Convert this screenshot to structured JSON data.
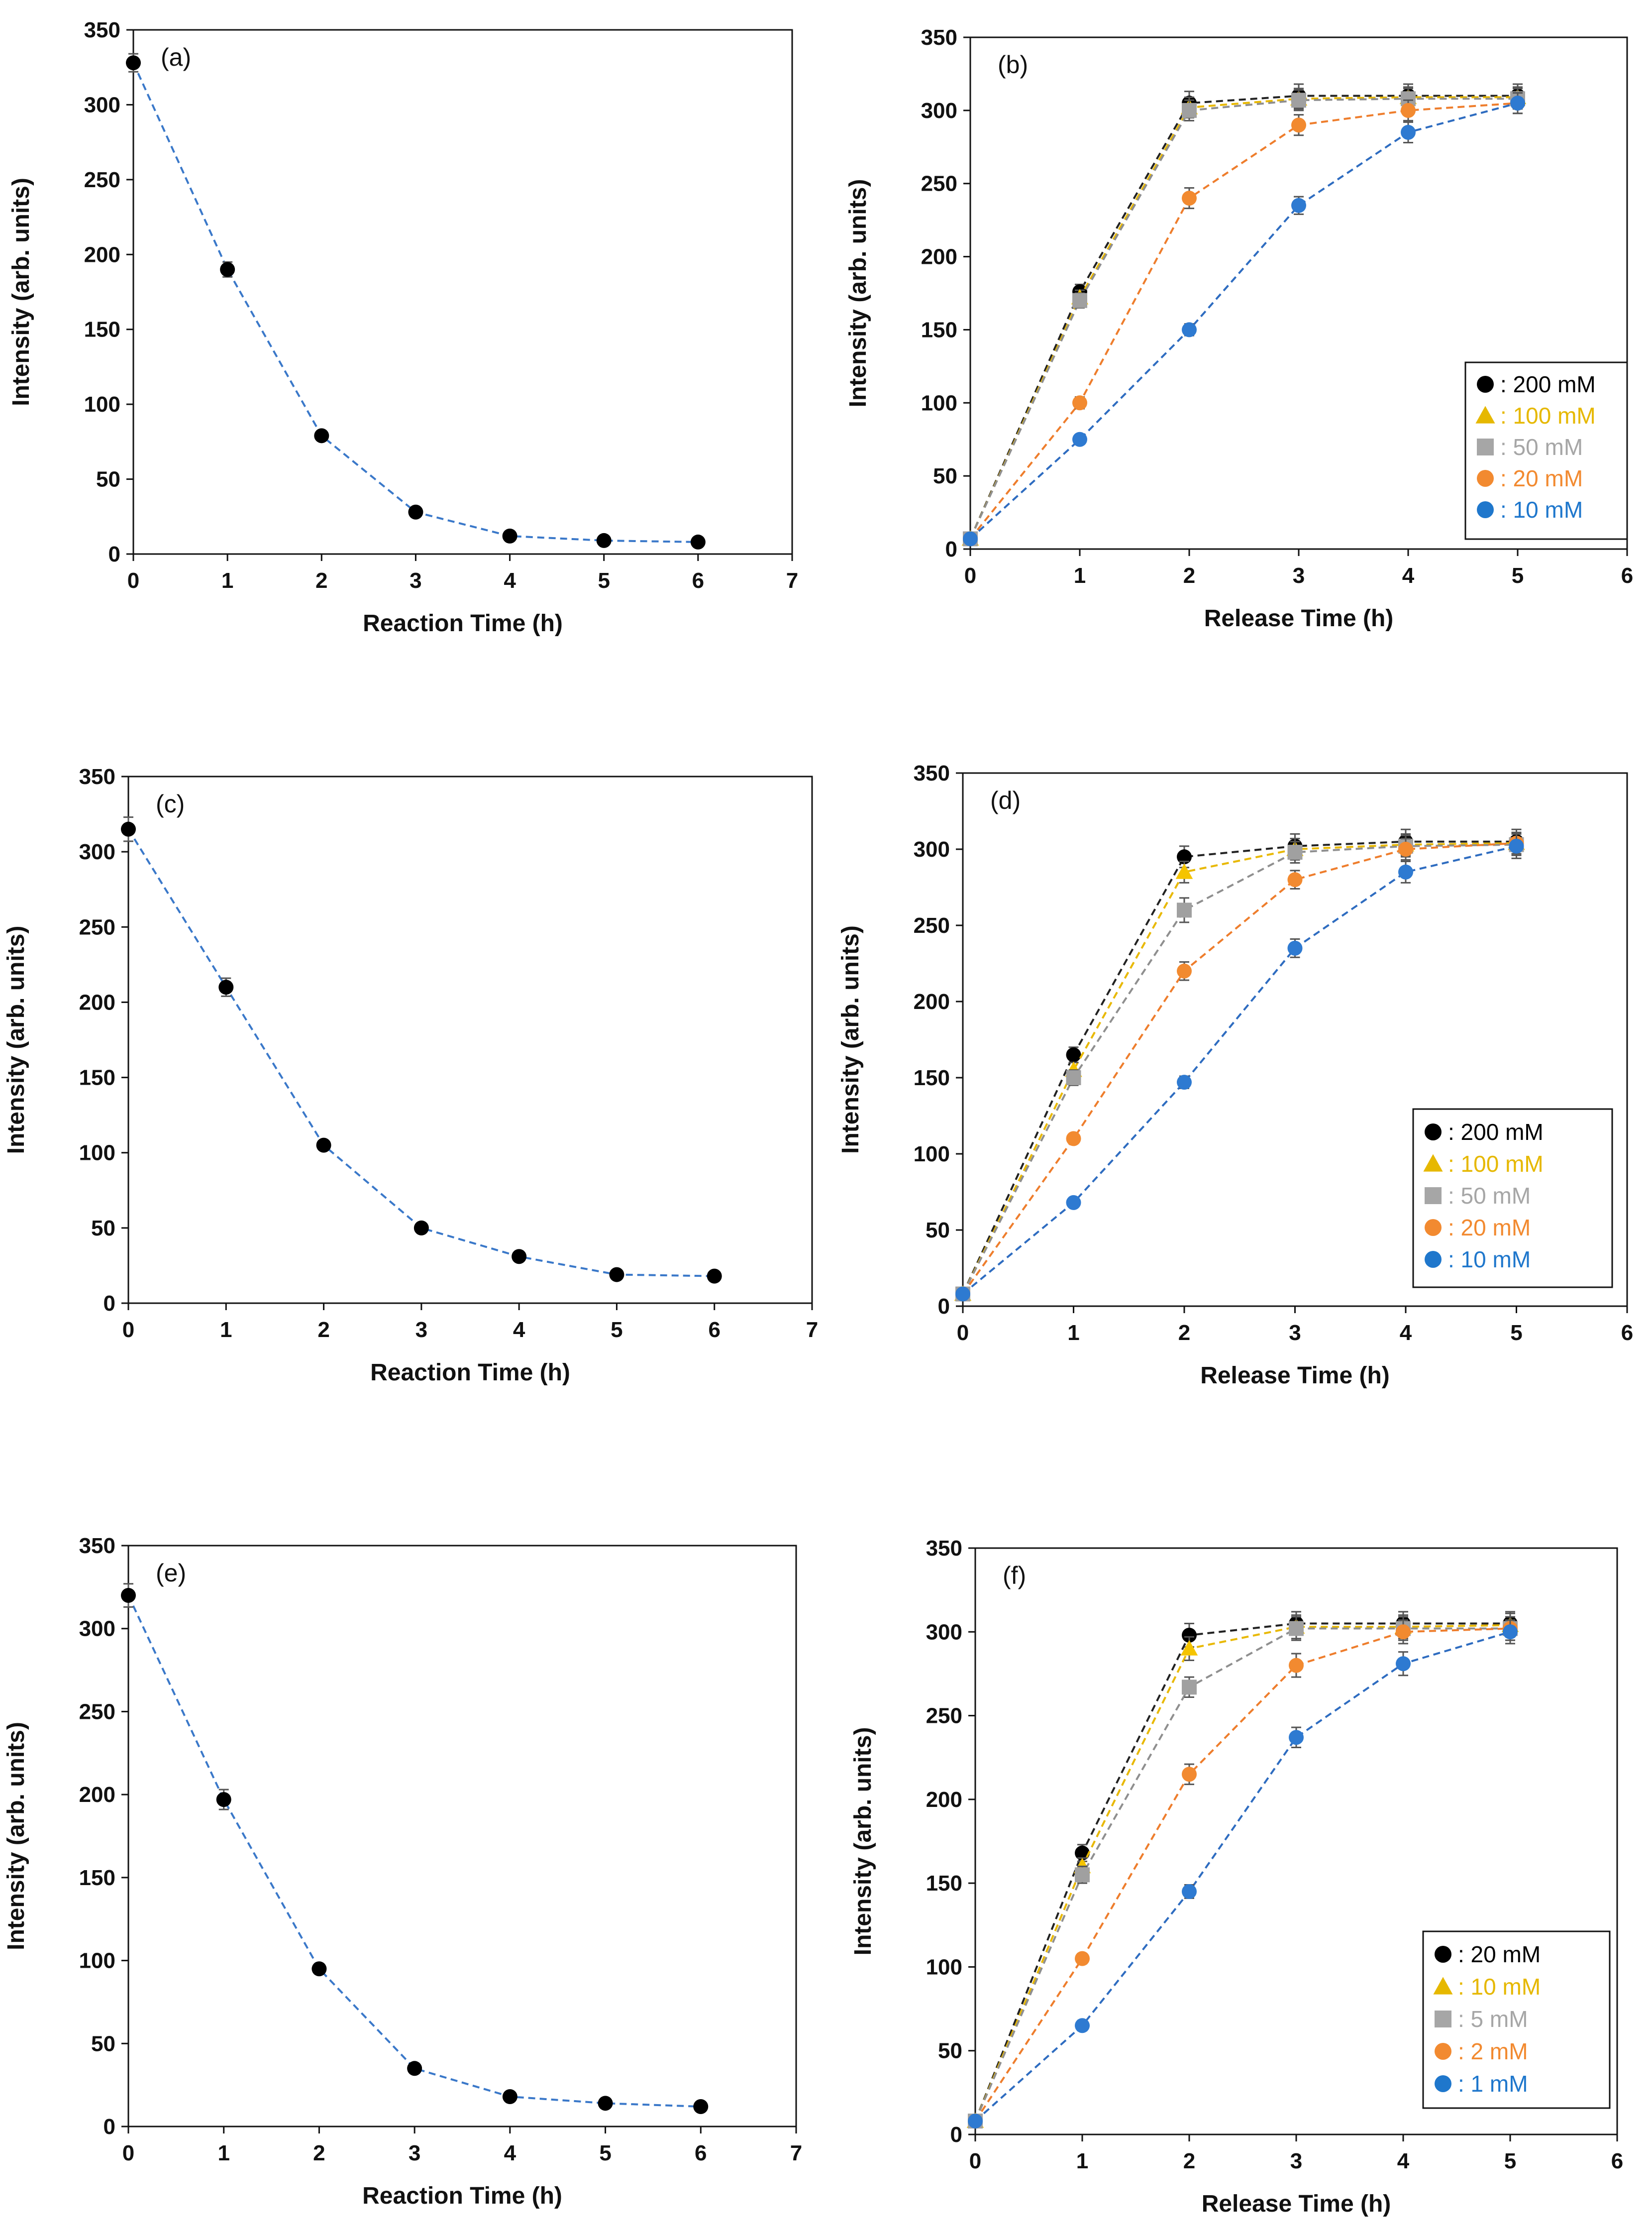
{
  "figure": {
    "colors": {
      "axis": "#111111",
      "decay_line": "#3a78c9",
      "marker_default": "#000000"
    },
    "series_styles": {
      "black": {
        "marker": "circle",
        "marker_color": "#000000",
        "line_color": "#222222",
        "legend_color": "#000000"
      },
      "yellow": {
        "marker": "triangle",
        "marker_color": "#f5c400",
        "line_color": "#e8b800",
        "legend_color": "#e6b800"
      },
      "gray": {
        "marker": "square",
        "marker_color": "#a0a0a0",
        "line_color": "#8f8f8f",
        "legend_color": "#a6a6a6"
      },
      "orange": {
        "marker": "circle",
        "marker_color": "#f28a30",
        "line_color": "#ee7d2c",
        "legend_color": "#f28a30"
      },
      "blue": {
        "marker": "circle",
        "marker_color": "#2e7ad1",
        "line_color": "#2e6cc0",
        "legend_color": "#1f77cc"
      }
    }
  },
  "chart_data": [
    {
      "id": "a",
      "type": "line",
      "panel_label": "(a)",
      "xlabel": "Reaction Time (h)",
      "ylabel": "Intensity (arb. units)",
      "xlim": [
        0,
        7
      ],
      "ylim": [
        0,
        350
      ],
      "xticks": [
        0,
        1,
        2,
        3,
        4,
        5,
        6,
        7
      ],
      "yticks": [
        0,
        50,
        100,
        150,
        200,
        250,
        300,
        350
      ],
      "legend": null,
      "series": [
        {
          "name": "decay",
          "style": "decay",
          "x": [
            0,
            1,
            2,
            3,
            4,
            5,
            6
          ],
          "y": [
            328,
            190,
            79,
            28,
            12,
            9,
            8
          ],
          "err": [
            6,
            5,
            3,
            2,
            2,
            2,
            2
          ]
        }
      ]
    },
    {
      "id": "b",
      "type": "line",
      "panel_label": "(b)",
      "xlabel": "Release Time (h)",
      "ylabel": "Intensity (arb. units)",
      "xlim": [
        0,
        6
      ],
      "ylim": [
        0,
        350
      ],
      "xticks": [
        0,
        1,
        2,
        3,
        4,
        5,
        6
      ],
      "yticks": [
        0,
        50,
        100,
        150,
        200,
        250,
        300,
        350
      ],
      "legend": {
        "position": "right-middle"
      },
      "series": [
        {
          "name": "200 mM",
          "legend_text": ": 200 mM",
          "style": "black",
          "x": [
            0,
            1,
            2,
            3,
            4,
            5
          ],
          "y": [
            7,
            176,
            305,
            310,
            310,
            310
          ],
          "err": [
            2,
            5,
            8,
            8,
            8,
            8
          ]
        },
        {
          "name": "100 mM",
          "legend_text": ": 100 mM",
          "style": "yellow",
          "x": [
            0,
            1,
            2,
            3,
            4,
            5
          ],
          "y": [
            7,
            172,
            302,
            308,
            309,
            309
          ],
          "err": [
            2,
            5,
            7,
            7,
            7,
            7
          ]
        },
        {
          "name": "50 mM",
          "legend_text": ": 50 mM",
          "style": "gray",
          "x": [
            0,
            1,
            2,
            3,
            4,
            5
          ],
          "y": [
            7,
            170,
            300,
            307,
            308,
            308
          ],
          "err": [
            2,
            5,
            7,
            7,
            7,
            7
          ]
        },
        {
          "name": "20 mM",
          "legend_text": ": 20 mM",
          "style": "orange",
          "x": [
            0,
            1,
            2,
            3,
            4,
            5
          ],
          "y": [
            7,
            100,
            240,
            290,
            300,
            305
          ],
          "err": [
            2,
            4,
            7,
            7,
            7,
            7
          ]
        },
        {
          "name": "10 mM",
          "legend_text": ": 10 mM",
          "style": "blue",
          "x": [
            0,
            1,
            2,
            3,
            4,
            5
          ],
          "y": [
            7,
            75,
            150,
            235,
            285,
            305
          ],
          "err": [
            2,
            3,
            4,
            6,
            7,
            7
          ]
        }
      ]
    },
    {
      "id": "c",
      "type": "line",
      "panel_label": "(c)",
      "xlabel": "Reaction Time (h)",
      "ylabel": "Intensity (arb. units)",
      "xlim": [
        0,
        7
      ],
      "ylim": [
        0,
        350
      ],
      "xticks": [
        0,
        1,
        2,
        3,
        4,
        5,
        6,
        7
      ],
      "yticks": [
        0,
        50,
        100,
        150,
        200,
        250,
        300,
        350
      ],
      "legend": null,
      "series": [
        {
          "name": "decay",
          "style": "decay",
          "x": [
            0,
            1,
            2,
            3,
            4,
            5,
            6
          ],
          "y": [
            315,
            210,
            105,
            50,
            31,
            19,
            18
          ],
          "err": [
            8,
            6,
            3,
            2,
            2,
            2,
            2
          ]
        }
      ]
    },
    {
      "id": "d",
      "type": "line",
      "panel_label": "(d)",
      "xlabel": "Release Time (h)",
      "ylabel": "Intensity (arb. units)",
      "xlim": [
        0,
        6
      ],
      "ylim": [
        0,
        350
      ],
      "xticks": [
        0,
        1,
        2,
        3,
        4,
        5,
        6
      ],
      "yticks": [
        0,
        50,
        100,
        150,
        200,
        250,
        300,
        350
      ],
      "legend": {
        "position": "right-middle"
      },
      "series": [
        {
          "name": "200 mM",
          "legend_text": ": 200 mM",
          "style": "black",
          "x": [
            0,
            1,
            2,
            3,
            4,
            5
          ],
          "y": [
            8,
            165,
            295,
            302,
            305,
            305
          ],
          "err": [
            2,
            5,
            7,
            8,
            8,
            8
          ]
        },
        {
          "name": "100 mM",
          "legend_text": ": 100 mM",
          "style": "yellow",
          "x": [
            0,
            1,
            2,
            3,
            4,
            5
          ],
          "y": [
            8,
            155,
            285,
            300,
            303,
            304
          ],
          "err": [
            2,
            5,
            7,
            7,
            7,
            7
          ]
        },
        {
          "name": "50 mM",
          "legend_text": ": 50 mM",
          "style": "gray",
          "x": [
            0,
            1,
            2,
            3,
            4,
            5
          ],
          "y": [
            8,
            150,
            260,
            298,
            302,
            303
          ],
          "err": [
            2,
            5,
            8,
            7,
            7,
            7
          ]
        },
        {
          "name": "20 mM",
          "legend_text": ": 20 mM",
          "style": "orange",
          "x": [
            0,
            1,
            2,
            3,
            4,
            5
          ],
          "y": [
            8,
            110,
            220,
            280,
            300,
            304
          ],
          "err": [
            2,
            3,
            6,
            6,
            7,
            7
          ]
        },
        {
          "name": "10 mM",
          "legend_text": ": 10 mM",
          "style": "blue",
          "x": [
            0,
            1,
            2,
            3,
            4,
            5
          ],
          "y": [
            8,
            68,
            147,
            235,
            285,
            302
          ],
          "err": [
            2,
            3,
            4,
            6,
            7,
            8
          ]
        }
      ]
    },
    {
      "id": "e",
      "type": "line",
      "panel_label": "(e)",
      "xlabel": "Reaction Time (h)",
      "ylabel": "Intensity (arb. units)",
      "xlim": [
        0,
        7
      ],
      "ylim": [
        0,
        350
      ],
      "xticks": [
        0,
        1,
        2,
        3,
        4,
        5,
        6,
        7
      ],
      "yticks": [
        0,
        50,
        100,
        150,
        200,
        250,
        300,
        350
      ],
      "legend": null,
      "series": [
        {
          "name": "decay",
          "style": "decay",
          "x": [
            0,
            1,
            2,
            3,
            4,
            5,
            6
          ],
          "y": [
            320,
            197,
            95,
            35,
            18,
            14,
            12
          ],
          "err": [
            7,
            6,
            3,
            2,
            2,
            2,
            2
          ]
        }
      ]
    },
    {
      "id": "f",
      "type": "line",
      "panel_label": "(f)",
      "xlabel": "Release Time (h)",
      "ylabel": "Intensity (arb. units)",
      "xlim": [
        0,
        6
      ],
      "ylim": [
        0,
        350
      ],
      "xticks": [
        0,
        1,
        2,
        3,
        4,
        5,
        6
      ],
      "yticks": [
        0,
        50,
        100,
        150,
        200,
        250,
        300,
        350
      ],
      "legend": {
        "position": "bottom-right"
      },
      "series": [
        {
          "name": "20 mM",
          "legend_text": ": 20 mM",
          "style": "black",
          "x": [
            0,
            1,
            2,
            3,
            4,
            5
          ],
          "y": [
            8,
            168,
            298,
            305,
            305,
            305
          ],
          "err": [
            2,
            5,
            7,
            7,
            7,
            7
          ]
        },
        {
          "name": "10 mM",
          "legend_text": ": 10 mM",
          "style": "yellow",
          "x": [
            0,
            1,
            2,
            3,
            4,
            5
          ],
          "y": [
            8,
            160,
            290,
            303,
            303,
            304
          ],
          "err": [
            2,
            5,
            7,
            7,
            7,
            7
          ]
        },
        {
          "name": "5 mM",
          "legend_text": ": 5 mM",
          "style": "gray",
          "x": [
            0,
            1,
            2,
            3,
            4,
            5
          ],
          "y": [
            8,
            155,
            267,
            302,
            302,
            302
          ],
          "err": [
            2,
            5,
            6,
            7,
            7,
            7
          ]
        },
        {
          "name": "2 mM",
          "legend_text": ": 2 mM",
          "style": "orange",
          "x": [
            0,
            1,
            2,
            3,
            4,
            5
          ],
          "y": [
            8,
            105,
            215,
            280,
            300,
            302
          ],
          "err": [
            2,
            3,
            6,
            7,
            7,
            7
          ]
        },
        {
          "name": "1 mM",
          "legend_text": ": 1 mM",
          "style": "blue",
          "x": [
            0,
            1,
            2,
            3,
            4,
            5
          ],
          "y": [
            8,
            65,
            145,
            237,
            281,
            300
          ],
          "err": [
            2,
            3,
            4,
            6,
            7,
            7
          ]
        }
      ]
    }
  ]
}
